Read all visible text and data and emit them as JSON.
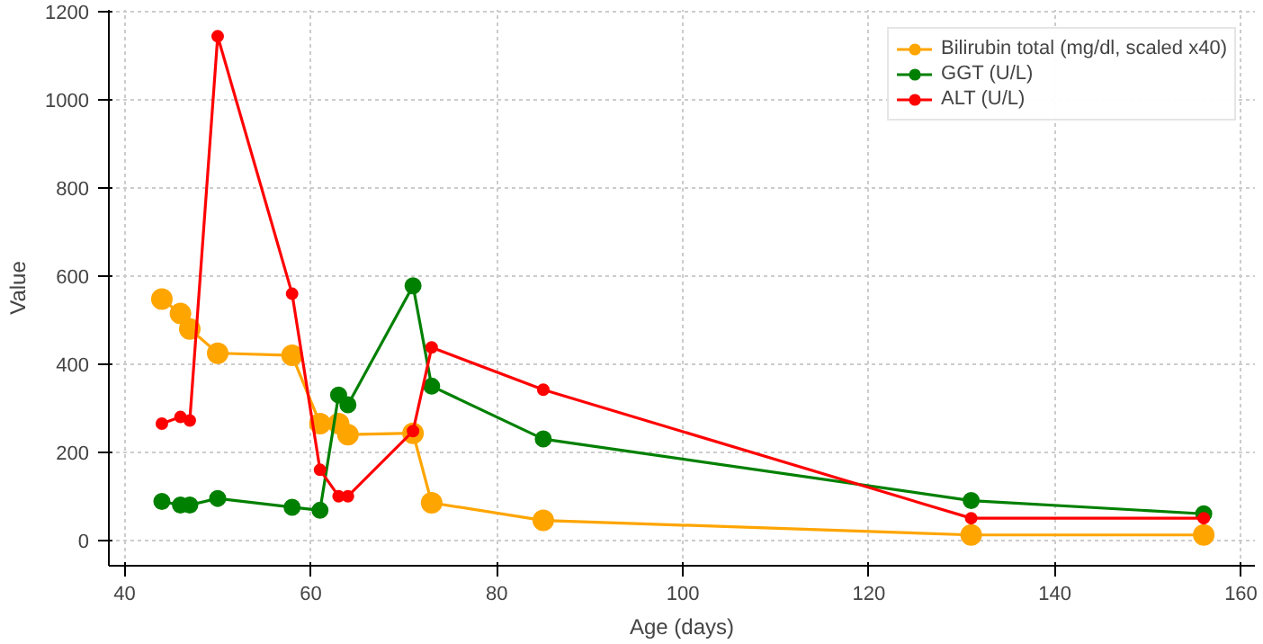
{
  "chart_data": {
    "type": "line",
    "xlabel": "Age (days)",
    "ylabel": "Value",
    "x": [
      44,
      46,
      47,
      50,
      58,
      61,
      63,
      64,
      71,
      73,
      85,
      131,
      156
    ],
    "series": [
      {
        "name": "Bilirubin total (mg/dl, scaled x40)",
        "color": "#ffa500",
        "values": [
          548,
          515,
          480,
          425,
          420,
          265,
          265,
          240,
          243,
          85,
          45,
          12,
          12
        ]
      },
      {
        "name": "GGT (U/L)",
        "color": "#008000",
        "values": [
          88,
          80,
          80,
          95,
          75,
          68,
          330,
          308,
          578,
          350,
          230,
          90,
          60
        ]
      },
      {
        "name": "ALT (U/L)",
        "color": "#ff0000",
        "values": [
          265,
          280,
          272,
          1145,
          560,
          160,
          100,
          100,
          248,
          438,
          342,
          50,
          50
        ]
      }
    ],
    "xlim": [
      38.3,
      161.5
    ],
    "ylim": [
      -58,
      1205
    ],
    "xticks": [
      40,
      60,
      80,
      100,
      120,
      140,
      160
    ],
    "yticks": [
      0,
      200,
      400,
      600,
      800,
      1000,
      1200
    ],
    "grid": true,
    "legend": "top right",
    "marker": "circle",
    "line_style": "solid"
  }
}
